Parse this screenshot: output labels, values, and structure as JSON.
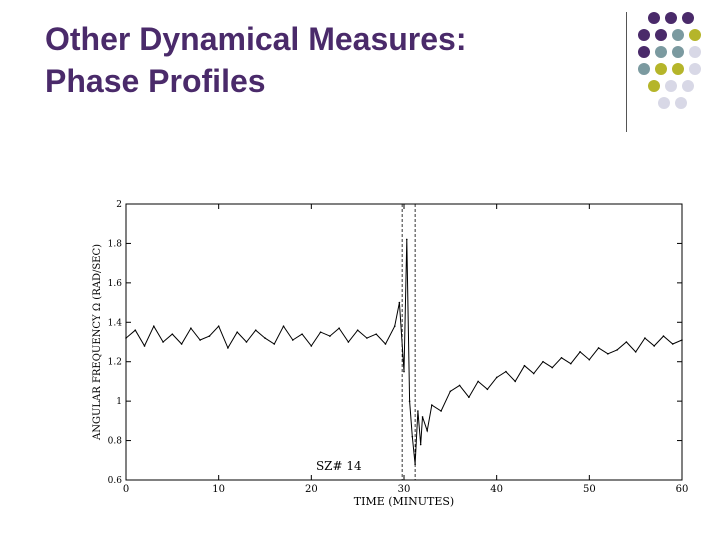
{
  "slide": {
    "title_line1": "Other Dynamical Measures:",
    "title_line2": "Phase Profiles"
  },
  "decor": {
    "colors": {
      "purple": "#4a2a6a",
      "teal": "#7b9aa0",
      "olive": "#b5b52a",
      "light": "#d8d8e6"
    },
    "dot_grid": [
      [
        "purple",
        "purple",
        "purple"
      ],
      [
        "purple",
        "purple",
        "teal",
        "olive"
      ],
      [
        "purple",
        "teal",
        "teal",
        "light"
      ],
      [
        "teal",
        "olive",
        "olive",
        "light"
      ],
      [
        "olive",
        "light",
        "light"
      ],
      [
        "light",
        "light"
      ]
    ]
  },
  "chart_data": {
    "type": "line",
    "ylabel": "ANGULAR FREQUENCY Ω (RAD/SEC)",
    "xlabel": "TIME (MINUTES)",
    "annotation": "SZ# 14",
    "xlim": [
      0,
      60
    ],
    "ylim": [
      0.6,
      2
    ],
    "xticks": [
      "0",
      "10",
      "20",
      "30",
      "40",
      "50",
      "60"
    ],
    "yticks": [
      "0.6",
      "0.8",
      "1",
      "1.2",
      "1.4",
      "1.6",
      "1.8",
      "2"
    ],
    "markers_x": [
      29.8,
      31.2
    ],
    "series": [
      {
        "x": [
          0,
          1,
          2,
          3,
          4,
          5,
          6,
          7,
          8,
          9,
          10,
          11,
          12,
          13,
          14,
          15,
          16,
          17,
          18,
          19,
          20,
          21,
          22,
          23,
          24,
          25,
          26,
          27,
          28,
          29,
          29.5,
          30,
          30.3,
          30.6,
          30.9,
          31.2,
          31.5,
          31.8,
          32,
          32.5,
          33,
          34,
          35,
          36,
          37,
          38,
          39,
          40,
          41,
          42,
          43,
          44,
          45,
          46,
          47,
          48,
          49,
          50,
          51,
          52,
          53,
          54,
          55,
          56,
          57,
          58,
          59,
          60
        ],
        "values": [
          1.32,
          1.36,
          1.28,
          1.38,
          1.3,
          1.34,
          1.29,
          1.37,
          1.31,
          1.33,
          1.38,
          1.27,
          1.35,
          1.3,
          1.36,
          1.32,
          1.29,
          1.38,
          1.31,
          1.34,
          1.28,
          1.35,
          1.33,
          1.37,
          1.3,
          1.36,
          1.32,
          1.34,
          1.29,
          1.38,
          1.5,
          1.15,
          1.82,
          1.0,
          0.82,
          0.68,
          0.95,
          0.78,
          0.92,
          0.85,
          0.98,
          0.95,
          1.05,
          1.08,
          1.02,
          1.1,
          1.06,
          1.12,
          1.15,
          1.1,
          1.18,
          1.14,
          1.2,
          1.17,
          1.22,
          1.19,
          1.25,
          1.21,
          1.27,
          1.24,
          1.26,
          1.3,
          1.25,
          1.32,
          1.28,
          1.33,
          1.29,
          1.31
        ]
      }
    ]
  }
}
